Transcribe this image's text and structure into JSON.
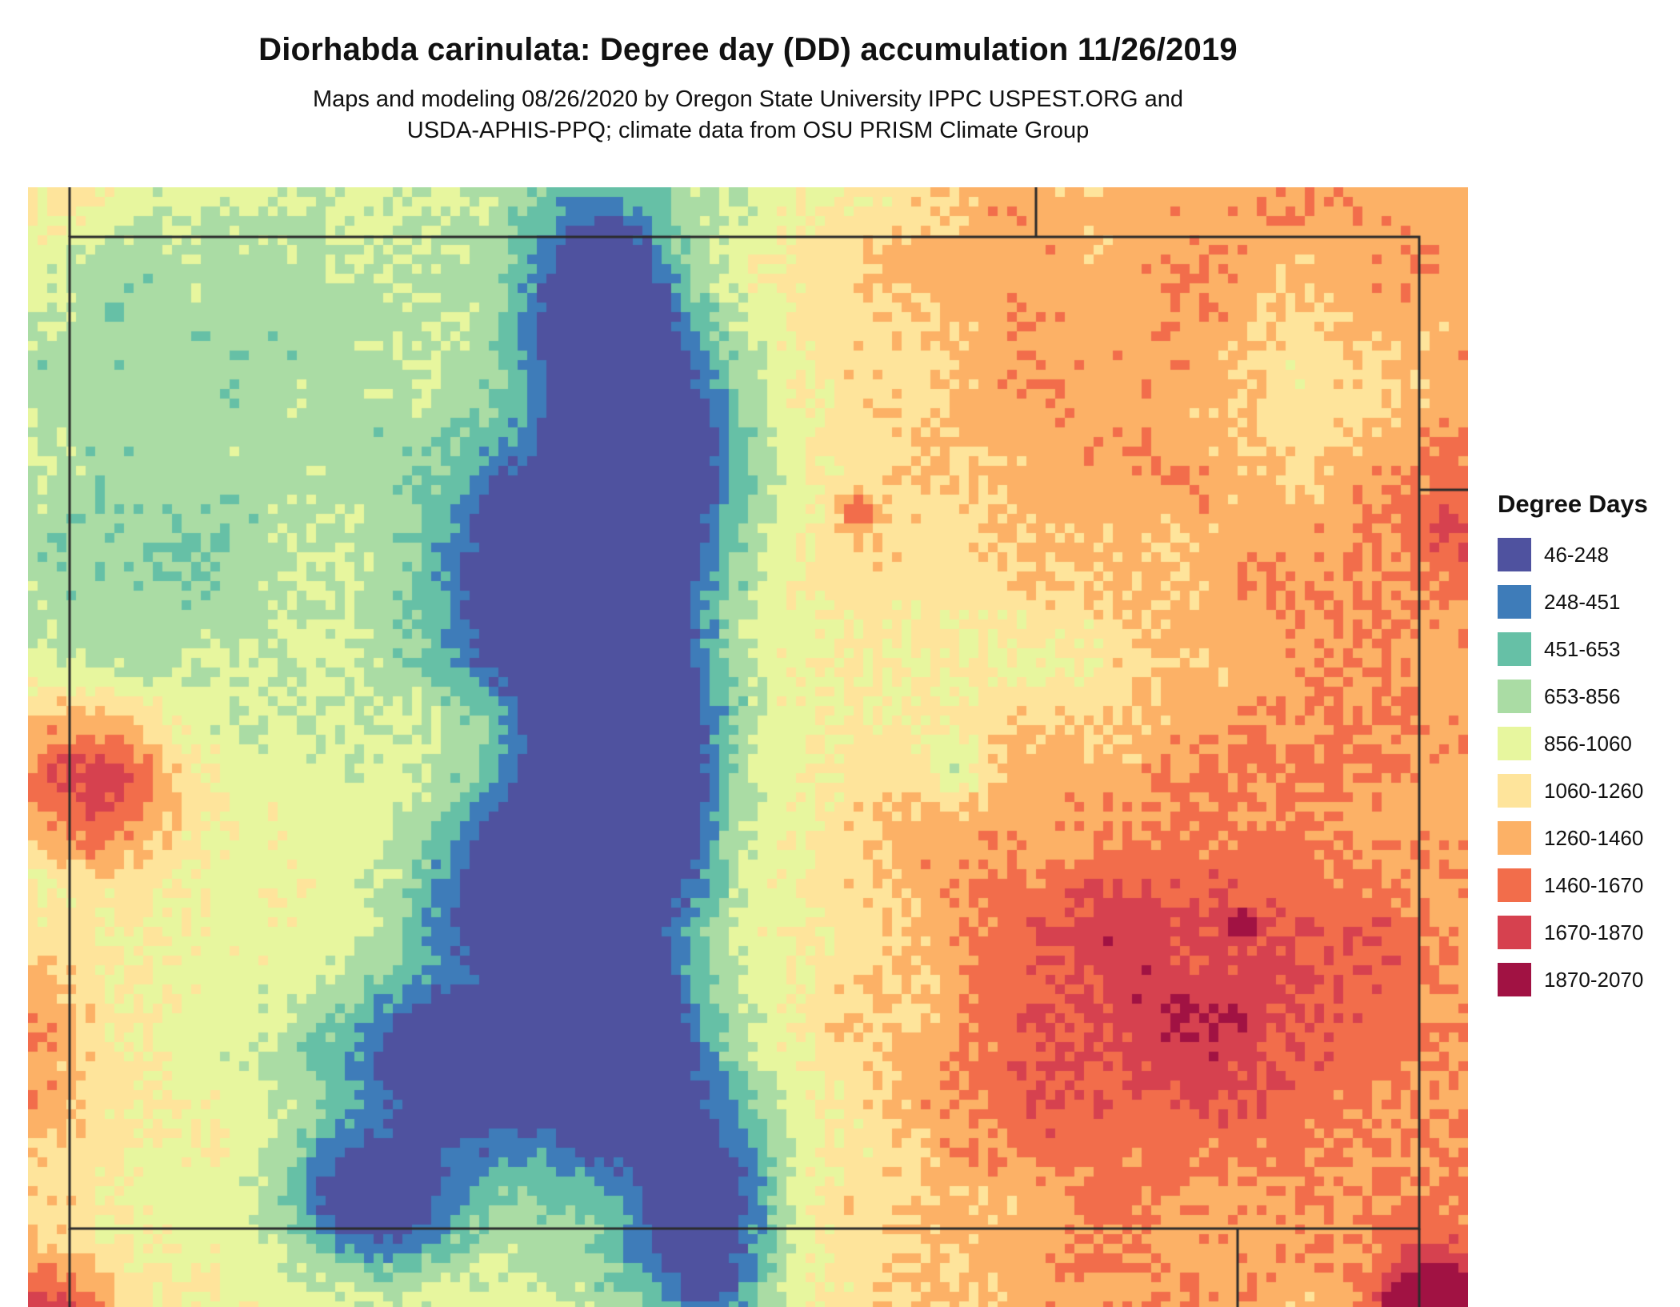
{
  "header": {
    "title": "Diorhabda carinulata: Degree day (DD) accumulation 11/26/2019",
    "subtitle_line1": "Maps and modeling 08/26/2020 by Oregon State University IPPC USPEST.ORG and",
    "subtitle_line2": "USDA-APHIS-PPQ; climate data from OSU PRISM Climate Group"
  },
  "legend": {
    "title": "Degree Days",
    "items": [
      {
        "label": "46-248",
        "color": "#4f529f"
      },
      {
        "label": "248-451",
        "color": "#3e7cb9"
      },
      {
        "label": "451-653",
        "color": "#66c0a6"
      },
      {
        "label": "653-856",
        "color": "#aadca4"
      },
      {
        "label": "856-1060",
        "color": "#e7f69e"
      },
      {
        "label": "1060-1260",
        "color": "#fee49b"
      },
      {
        "label": "1260-1460",
        "color": "#fcb166"
      },
      {
        "label": "1460-1670",
        "color": "#f26d4b"
      },
      {
        "label": "1670-1870",
        "color": "#d6414f"
      },
      {
        "label": "1870-2070",
        "color": "#a11243"
      }
    ]
  },
  "chart_data": {
    "type": "heatmap",
    "legend_title": "Degree Days",
    "bin_edges": [
      46,
      248,
      451,
      653,
      856,
      1060,
      1260,
      1460,
      1670,
      1870,
      2070
    ],
    "bin_labels": [
      "46-248",
      "248-451",
      "451-653",
      "653-856",
      "856-1060",
      "1060-1260",
      "1260-1460",
      "1460-1670",
      "1670-1870",
      "1870-2070"
    ],
    "palette": [
      "#4f529f",
      "#3e7cb9",
      "#66c0a6",
      "#aadca4",
      "#e7f69e",
      "#fee49b",
      "#fcb166",
      "#f26d4b",
      "#d6414f",
      "#a11243"
    ],
    "boundary_color": "#2b2b2b"
  }
}
